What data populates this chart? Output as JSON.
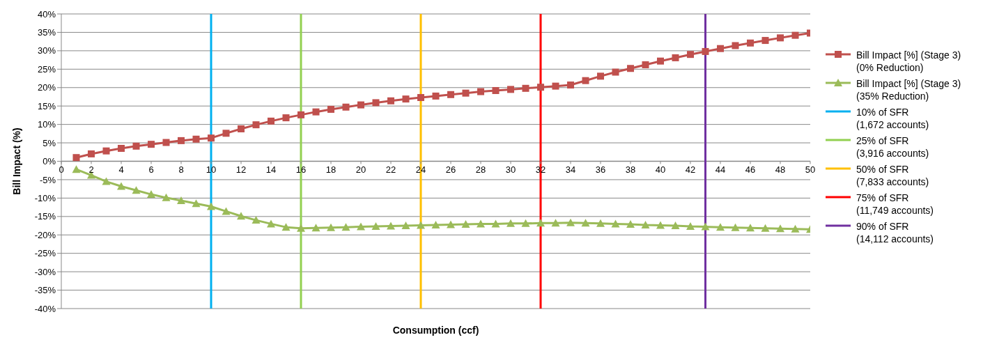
{
  "chart_data": {
    "type": "line",
    "xlabel": "Consumption (ccf)",
    "ylabel": "Bill Impact (%)",
    "x": [
      1,
      2,
      3,
      4,
      5,
      6,
      7,
      8,
      9,
      10,
      11,
      12,
      13,
      14,
      15,
      16,
      17,
      18,
      19,
      20,
      21,
      22,
      23,
      24,
      25,
      26,
      27,
      28,
      29,
      30,
      31,
      32,
      33,
      34,
      35,
      36,
      37,
      38,
      39,
      40,
      41,
      42,
      43,
      44,
      45,
      46,
      47,
      48,
      49,
      50
    ],
    "series": [
      {
        "name": "Bill Impact [%] (Stage 3)\n(0% Reduction)",
        "color": "#c0504d",
        "marker": "square",
        "values": [
          1.0,
          2.0,
          2.8,
          3.5,
          4.1,
          4.6,
          5.1,
          5.6,
          6.0,
          6.3,
          7.6,
          8.8,
          9.9,
          10.9,
          11.8,
          12.6,
          13.4,
          14.1,
          14.7,
          15.3,
          15.9,
          16.4,
          16.9,
          17.3,
          17.7,
          18.1,
          18.5,
          18.9,
          19.2,
          19.5,
          19.8,
          20.1,
          20.4,
          20.7,
          21.9,
          23.1,
          24.2,
          25.2,
          26.2,
          27.2,
          28.1,
          29.0,
          29.8,
          30.6,
          31.4,
          32.1,
          32.8,
          33.5,
          34.2,
          34.8
        ]
      },
      {
        "name": "Bill Impact [%] (Stage 3)\n(35% Reduction)",
        "color": "#9bbb59",
        "marker": "triangle",
        "values": [
          -2.2,
          -3.8,
          -5.5,
          -6.8,
          -7.9,
          -9.0,
          -9.9,
          -10.7,
          -11.5,
          -12.3,
          -13.6,
          -14.9,
          -16.0,
          -17.0,
          -17.9,
          -18.2,
          -18.1,
          -18.0,
          -17.9,
          -17.8,
          -17.7,
          -17.6,
          -17.5,
          -17.4,
          -17.3,
          -17.2,
          -17.1,
          -17.0,
          -17.0,
          -16.9,
          -16.9,
          -16.8,
          -16.8,
          -16.7,
          -16.8,
          -16.9,
          -17.0,
          -17.1,
          -17.3,
          -17.4,
          -17.5,
          -17.7,
          -17.8,
          -17.9,
          -18.0,
          -18.1,
          -18.2,
          -18.3,
          -18.4,
          -18.5
        ]
      },
      {
        "type": "line",
        "name": "10% of SFR\n(1,672 accounts)",
        "color": "#00b0f0",
        "marker": "none",
        "x": [
          10,
          10
        ],
        "values": [
          -40,
          40
        ]
      },
      {
        "type": "line",
        "name": "25% of SFR\n(3,916 accounts)",
        "color": "#92d050",
        "marker": "none",
        "x": [
          16,
          16
        ],
        "values": [
          -40,
          40
        ]
      },
      {
        "type": "line",
        "name": "50% of SFR\n(7,833 accounts)",
        "color": "#ffc000",
        "marker": "none",
        "x": [
          24,
          24
        ],
        "values": [
          -40,
          40
        ]
      },
      {
        "type": "line",
        "name": "75% of SFR\n(11,749 accounts)",
        "color": "#ff0000",
        "marker": "none",
        "x": [
          32,
          32
        ],
        "values": [
          -40,
          40
        ]
      },
      {
        "type": "line",
        "name": "90% of SFR\n(14,112 accounts)",
        "color": "#7030a0",
        "marker": "none",
        "x": [
          43,
          43
        ],
        "values": [
          -40,
          40
        ]
      }
    ],
    "xlim": [
      0,
      50
    ],
    "xticks": [
      0,
      2,
      4,
      6,
      8,
      10,
      12,
      14,
      16,
      18,
      20,
      22,
      24,
      26,
      28,
      30,
      32,
      34,
      36,
      38,
      40,
      42,
      44,
      46,
      48,
      50
    ],
    "ylim": [
      -40,
      40
    ],
    "yticks": [
      {
        "value": -40,
        "label": "-40%"
      },
      {
        "value": -35,
        "label": "-35%"
      },
      {
        "value": -30,
        "label": "-30%"
      },
      {
        "value": -25,
        "label": "-25%"
      },
      {
        "value": -20,
        "label": "-20%"
      },
      {
        "value": -15,
        "label": "-15%"
      },
      {
        "value": -10,
        "label": "-10%"
      },
      {
        "value": -5,
        "label": "-5%"
      },
      {
        "value": 0,
        "label": "0%"
      },
      {
        "value": 5,
        "label": "5%"
      },
      {
        "value": 10,
        "label": "10%"
      },
      {
        "value": 15,
        "label": "15%"
      },
      {
        "value": 20,
        "label": "20%"
      },
      {
        "value": 25,
        "label": "25%"
      },
      {
        "value": 30,
        "label": "30%"
      },
      {
        "value": 35,
        "label": "35%"
      },
      {
        "value": 40,
        "label": "40%"
      }
    ],
    "grid": "y",
    "legend": "right",
    "line_style": "solid"
  }
}
